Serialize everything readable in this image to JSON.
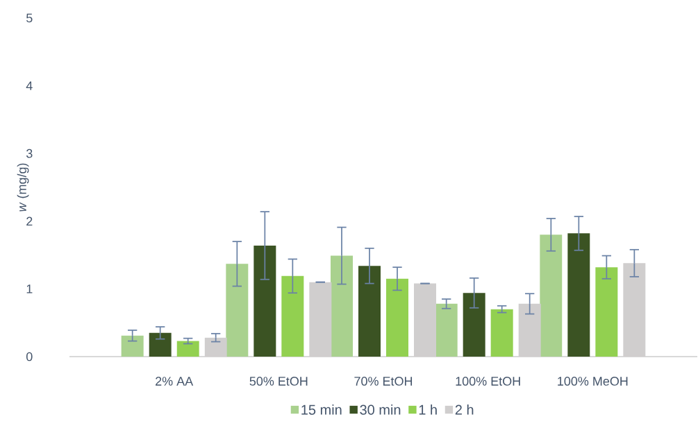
{
  "chart_data": {
    "type": "bar",
    "ylabel": "*w* (mg/g)",
    "categories": [
      "2% AA",
      "50% EtOH",
      "70% EtOH",
      "100% EtOH",
      "100% MeOH"
    ],
    "series": [
      {
        "name": "15 min",
        "color": "#a9d18e",
        "values": [
          0.31,
          1.37,
          1.49,
          0.78,
          1.8
        ],
        "errors": [
          0.08,
          0.33,
          0.42,
          0.07,
          0.24
        ]
      },
      {
        "name": "30 min",
        "color": "#3b5323",
        "values": [
          0.35,
          1.64,
          1.34,
          0.94,
          1.82
        ],
        "errors": [
          0.09,
          0.5,
          0.26,
          0.22,
          0.25
        ]
      },
      {
        "name": "1 h",
        "color": "#92d050",
        "values": [
          0.23,
          1.19,
          1.15,
          0.7,
          1.32
        ],
        "errors": [
          0.04,
          0.25,
          0.17,
          0.05,
          0.17
        ]
      },
      {
        "name": "2 h",
        "color": "#d0cece",
        "values": [
          0.28,
          1.1,
          1.08,
          0.78,
          1.38
        ],
        "errors": [
          0.06,
          0,
          0,
          0.15,
          0.2
        ]
      }
    ],
    "ylim": [
      0,
      5
    ],
    "yticks": [
      0,
      1,
      2,
      3,
      4,
      5
    ],
    "grid": false,
    "legend": "bottom"
  }
}
